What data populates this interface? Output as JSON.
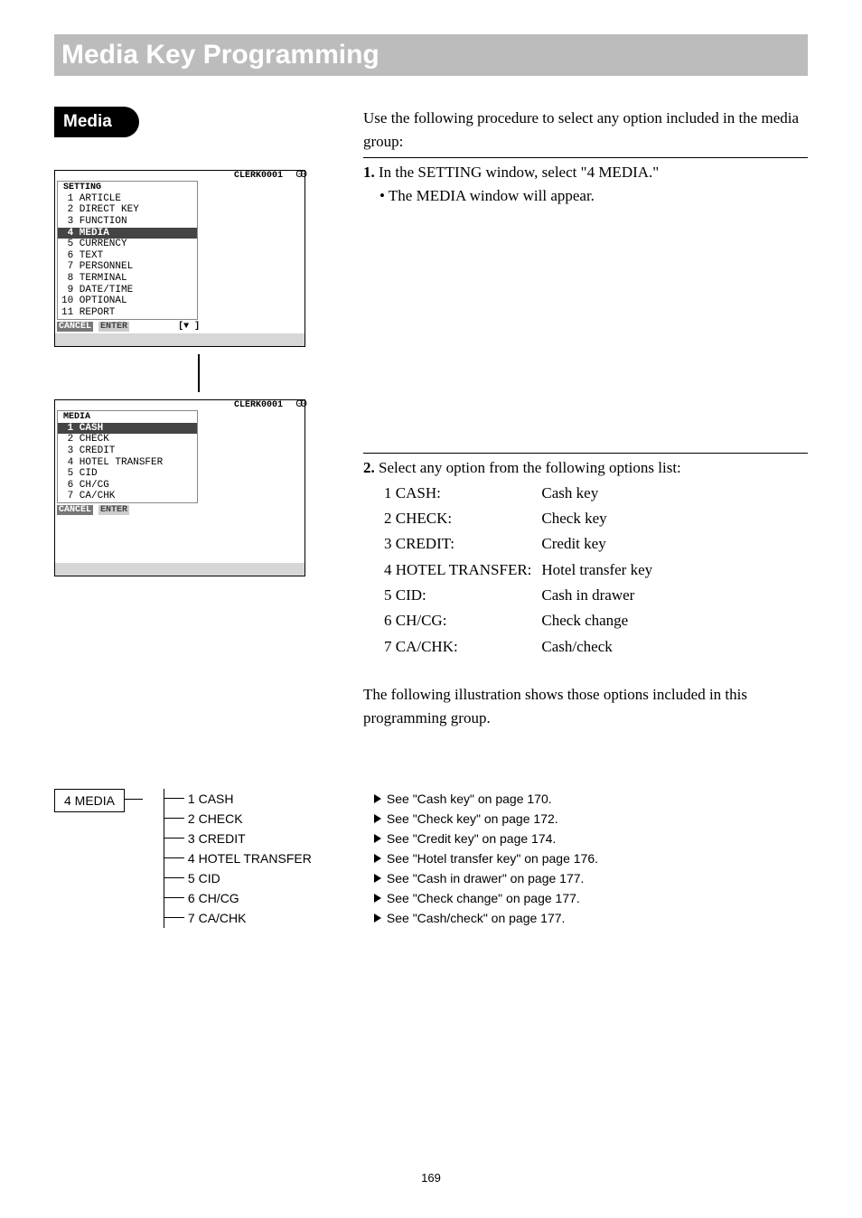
{
  "header": {
    "title": "Media Key Programming"
  },
  "pill": "Media",
  "para1": "Use the following procedure to select any option included in the media group:",
  "step1_num": "1.",
  "step1_txt": " In the SETTING window, select \"4 MEDIA.\"",
  "step1_txt2": "• The MEDIA window will appear.",
  "lcd1": {
    "clerk": "CLERK0001",
    "rr": "ꙨꙨ",
    "title": "SETTING",
    "items": [
      " 1 ARTICLE",
      " 2 DIRECT KEY",
      " 3 FUNCTION",
      " 4 MEDIA",
      " 5 CURRENCY",
      " 6 TEXT",
      " 7 PERSONNEL",
      " 8 TERMINAL",
      " 9 DATE/TIME",
      "10 OPTIONAL",
      "11 REPORT"
    ],
    "sel": 3,
    "cancel": "CANCEL",
    "enter": "ENTER",
    "down": "[▼ ]"
  },
  "step2_num": "2.",
  "step2_txt": " Select any option from the following options list:",
  "opts": [
    {
      "k": "1 CASH:",
      "v": "Cash key"
    },
    {
      "k": "2 CHECK:",
      "v": "Check key"
    },
    {
      "k": "3 CREDIT:",
      "v": "Credit key"
    },
    {
      "k": "4 HOTEL TRANSFER:",
      "v": "Hotel transfer key"
    },
    {
      "k": "5 CID:",
      "v": "Cash in drawer"
    },
    {
      "k": "6 CH/CG:",
      "v": "Check change"
    },
    {
      "k": "7 CA/CHK:",
      "v": "Cash/check"
    }
  ],
  "lcd2": {
    "clerk": "CLERK0001",
    "rr": "ꙨꙨ",
    "title": "MEDIA",
    "items": [
      " 1 CASH",
      " 2 CHECK",
      " 3 CREDIT",
      " 4 HOTEL TRANSFER",
      " 5 CID",
      " 6 CH/CG",
      " 7 CA/CHK"
    ],
    "sel": 0,
    "cancel": "CANCEL",
    "enter": "ENTER"
  },
  "tail": "The following illustration shows those options included in this programming group.",
  "tree": {
    "root": "4 MEDIA",
    "rows": [
      {
        "l": "1 CASH",
        "r": "See \"Cash key\" on page 170."
      },
      {
        "l": "2 CHECK",
        "r": "See \"Check key\" on page 172."
      },
      {
        "l": "3 CREDIT",
        "r": "See \"Credit key\" on page 174."
      },
      {
        "l": "4 HOTEL TRANSFER",
        "r": "See \"Hotel transfer key\" on page 176."
      },
      {
        "l": "5 CID",
        "r": "See \"Cash in drawer\" on page 177."
      },
      {
        "l": "6 CH/CG",
        "r": "See \"Check change\" on page 177."
      },
      {
        "l": "7 CA/CHK",
        "r": "See \"Cash/check\" on page 177."
      }
    ]
  },
  "page_num": "169"
}
